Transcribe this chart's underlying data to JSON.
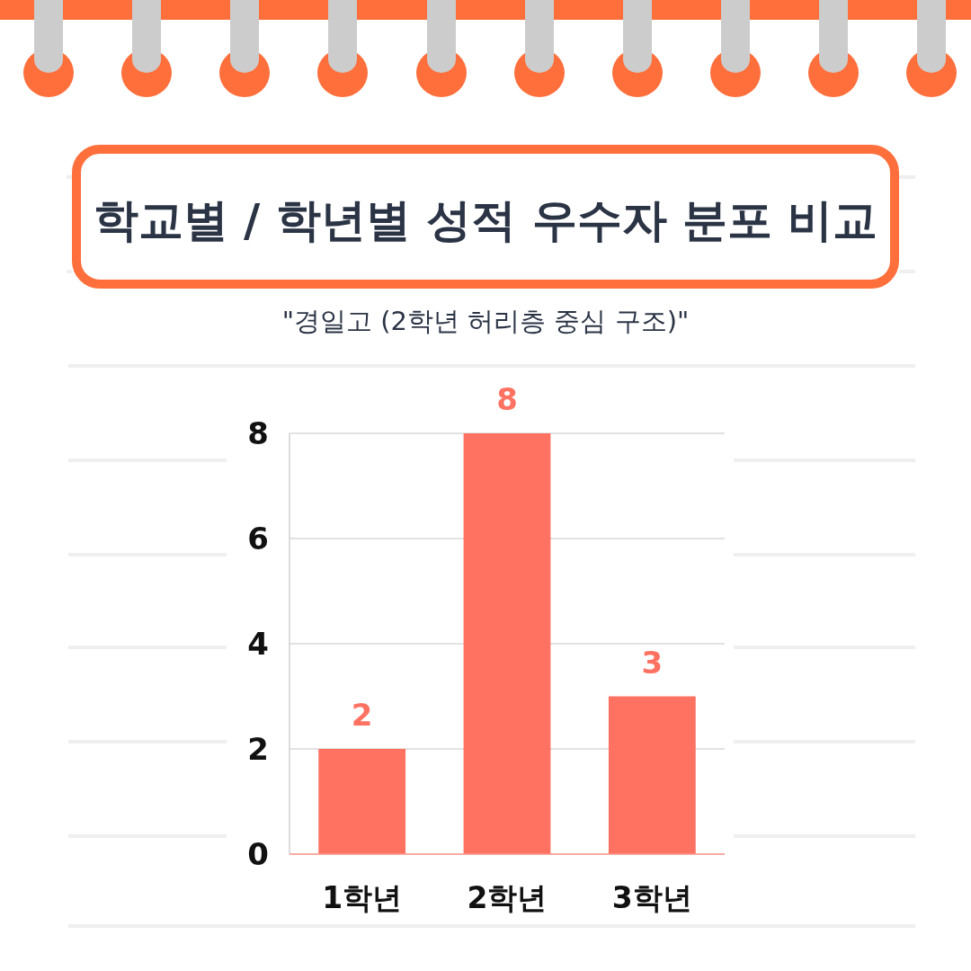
{
  "chart_data": {
    "type": "bar",
    "title": "학교별 / 학년별 성적 우수자 분포 비교",
    "subtitle": "\"경일고 (2학년 허리층 중심 구조)\"",
    "categories": [
      "1학년",
      "2학년",
      "3학년"
    ],
    "values": [
      2,
      8,
      3
    ],
    "color": "#ff7262",
    "ylim": [
      0,
      8
    ],
    "yticks": [
      0,
      2,
      4,
      6,
      8
    ],
    "grid": "y",
    "data_labels": true
  }
}
